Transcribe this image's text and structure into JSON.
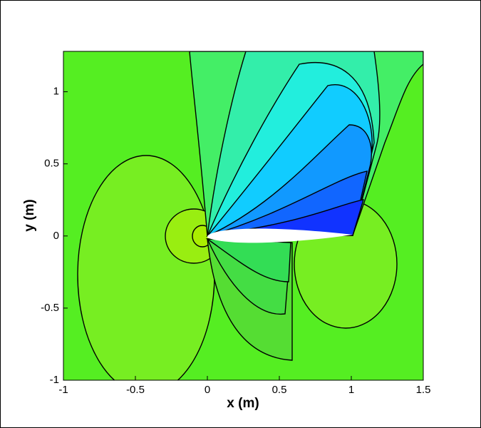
{
  "chart_data": {
    "type": "contour",
    "x_label": "x (m)",
    "y_label": "y (m)",
    "xlim": [
      -1,
      1.5
    ],
    "ylim": [
      -1,
      1.28
    ],
    "xticks": [
      -1,
      -0.5,
      0,
      0.5,
      1,
      1.5
    ],
    "yticks": [
      -1,
      -0.5,
      0,
      0.5,
      1
    ]
  }
}
